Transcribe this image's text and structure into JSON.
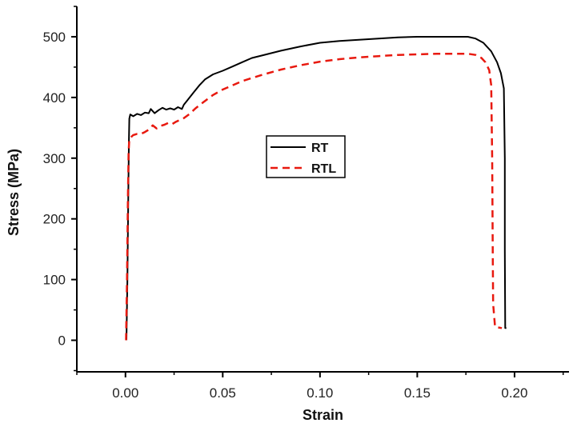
{
  "chart_data": {
    "type": "line",
    "title": "",
    "xlabel": "Strain",
    "ylabel": "Stress (MPa)",
    "xlim": [
      -0.025,
      0.228
    ],
    "ylim": [
      -52,
      550
    ],
    "x_ticks": [
      0.0,
      0.05,
      0.1,
      0.15,
      0.2
    ],
    "x_tick_labels": [
      "0.00",
      "0.05",
      "0.10",
      "0.15",
      "0.20"
    ],
    "y_ticks": [
      0,
      100,
      200,
      300,
      400,
      500
    ],
    "y_tick_labels": [
      "0",
      "100",
      "200",
      "300",
      "400",
      "500"
    ],
    "grid": false,
    "legend_position": "center",
    "series": [
      {
        "name": "RT",
        "color": "#000000",
        "style": "solid",
        "points": [
          [
            0.0005,
            0
          ],
          [
            0.001,
            100
          ],
          [
            0.0015,
            250
          ],
          [
            0.0018,
            330
          ],
          [
            0.002,
            365
          ],
          [
            0.0025,
            372
          ],
          [
            0.004,
            369
          ],
          [
            0.006,
            373
          ],
          [
            0.008,
            371
          ],
          [
            0.01,
            375
          ],
          [
            0.012,
            374
          ],
          [
            0.013,
            381
          ],
          [
            0.015,
            374
          ],
          [
            0.017,
            379
          ],
          [
            0.019,
            383
          ],
          [
            0.021,
            380
          ],
          [
            0.023,
            382
          ],
          [
            0.025,
            380
          ],
          [
            0.027,
            384
          ],
          [
            0.029,
            381
          ],
          [
            0.03,
            388
          ],
          [
            0.032,
            396
          ],
          [
            0.035,
            408
          ],
          [
            0.038,
            420
          ],
          [
            0.041,
            430
          ],
          [
            0.045,
            438
          ],
          [
            0.05,
            444
          ],
          [
            0.055,
            451
          ],
          [
            0.06,
            458
          ],
          [
            0.065,
            465
          ],
          [
            0.07,
            469
          ],
          [
            0.08,
            477
          ],
          [
            0.09,
            484
          ],
          [
            0.1,
            490
          ],
          [
            0.11,
            493
          ],
          [
            0.12,
            495
          ],
          [
            0.13,
            497
          ],
          [
            0.14,
            499
          ],
          [
            0.15,
            500
          ],
          [
            0.16,
            500
          ],
          [
            0.17,
            500
          ],
          [
            0.176,
            500
          ],
          [
            0.18,
            497
          ],
          [
            0.184,
            490
          ],
          [
            0.188,
            476
          ],
          [
            0.191,
            458
          ],
          [
            0.193,
            440
          ],
          [
            0.1945,
            415
          ],
          [
            0.195,
            300
          ],
          [
            0.195,
            150
          ],
          [
            0.1952,
            20
          ],
          [
            0.1958,
            20
          ]
        ]
      },
      {
        "name": "RTL",
        "color": "#e8190f",
        "style": "dashed",
        "points": [
          [
            0.0003,
            0
          ],
          [
            0.0008,
            100
          ],
          [
            0.0013,
            240
          ],
          [
            0.0016,
            310
          ],
          [
            0.002,
            332
          ],
          [
            0.004,
            338
          ],
          [
            0.006,
            340
          ],
          [
            0.008,
            340
          ],
          [
            0.01,
            343
          ],
          [
            0.012,
            347
          ],
          [
            0.014,
            354
          ],
          [
            0.016,
            349
          ],
          [
            0.018,
            353
          ],
          [
            0.02,
            355
          ],
          [
            0.022,
            358
          ],
          [
            0.024,
            356
          ],
          [
            0.026,
            360
          ],
          [
            0.028,
            363
          ],
          [
            0.03,
            366
          ],
          [
            0.033,
            373
          ],
          [
            0.036,
            382
          ],
          [
            0.04,
            392
          ],
          [
            0.045,
            404
          ],
          [
            0.05,
            413
          ],
          [
            0.055,
            420
          ],
          [
            0.06,
            427
          ],
          [
            0.07,
            437
          ],
          [
            0.08,
            446
          ],
          [
            0.09,
            453
          ],
          [
            0.1,
            459
          ],
          [
            0.11,
            463
          ],
          [
            0.12,
            466
          ],
          [
            0.13,
            468
          ],
          [
            0.14,
            470
          ],
          [
            0.15,
            471
          ],
          [
            0.16,
            472
          ],
          [
            0.17,
            472
          ],
          [
            0.176,
            472
          ],
          [
            0.18,
            470
          ],
          [
            0.183,
            465
          ],
          [
            0.185,
            458
          ],
          [
            0.187,
            445
          ],
          [
            0.188,
            420
          ],
          [
            0.1885,
            300
          ],
          [
            0.1888,
            150
          ],
          [
            0.189,
            60
          ],
          [
            0.19,
            22
          ],
          [
            0.1935,
            20
          ]
        ]
      }
    ]
  }
}
